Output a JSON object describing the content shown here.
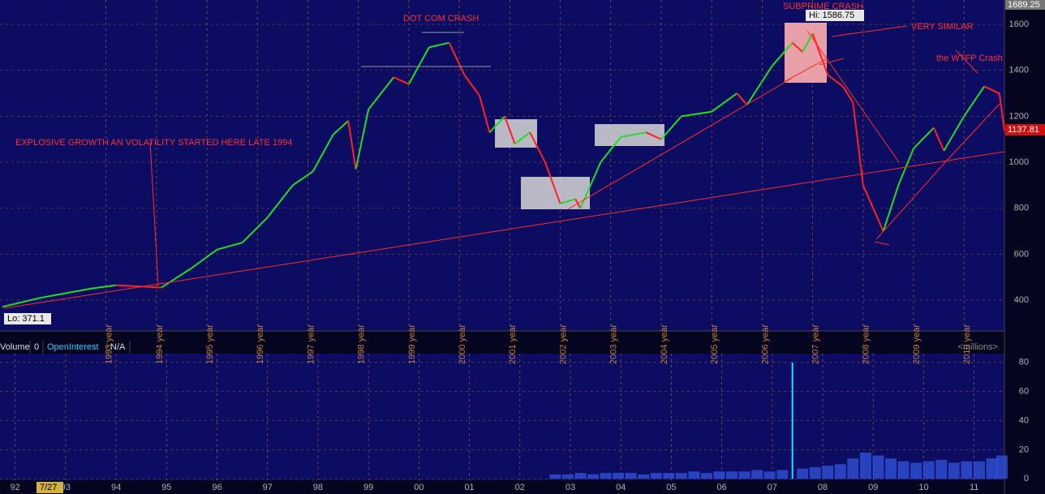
{
  "chart_data": [
    {
      "type": "line",
      "x": [
        1991.75,
        1992.5,
        1993,
        1993.5,
        1994,
        1994.9,
        1995.5,
        1996,
        1996.5,
        1997,
        1997.5,
        1997.9,
        1998.3,
        1998.6,
        1998.75,
        1999,
        1999.5,
        1999.8,
        2000.2,
        2000.6,
        2000.9,
        2001.2,
        2001.4,
        2001.7,
        2001.9,
        2002.2,
        2002.5,
        2002.8,
        2003.1,
        2003.2,
        2003.6,
        2004,
        2004.5,
        2004.8,
        2005.2,
        2005.8,
        2006.3,
        2006.5,
        2007,
        2007.4,
        2007.6,
        2007.8,
        2008.1,
        2008.4,
        2008.6,
        2008.8,
        2009.2,
        2009.5,
        2009.8,
        2010.2,
        2010.4,
        2010.8,
        2011.2,
        2011.5,
        2011.6
      ],
      "values": [
        371,
        410,
        430,
        450,
        465,
        455,
        540,
        620,
        650,
        760,
        900,
        960,
        1120,
        1180,
        970,
        1230,
        1370,
        1340,
        1500,
        1520,
        1380,
        1290,
        1130,
        1200,
        1080,
        1130,
        1000,
        820,
        840,
        800,
        1000,
        1110,
        1130,
        1100,
        1200,
        1220,
        1300,
        1250,
        1420,
        1520,
        1480,
        1560,
        1380,
        1330,
        1260,
        900,
        700,
        900,
        1060,
        1150,
        1050,
        1200,
        1330,
        1300,
        1137.81
      ],
      "up_color": "#22dd22",
      "down_color": "#ff2020",
      "xlim": [
        1991.7,
        2011.6
      ],
      "xticks": [
        {
          "value": 1993.8,
          "label": "1993 year"
        },
        {
          "value": 1994.8,
          "label": "1994 year"
        },
        {
          "value": 1995.8,
          "label": "1995 year"
        },
        {
          "value": 1996.8,
          "label": "1996 year"
        },
        {
          "value": 1997.8,
          "label": "1997 year"
        },
        {
          "value": 1998.8,
          "label": "1998 year"
        },
        {
          "value": 1999.8,
          "label": "1999 year"
        },
        {
          "value": 2000.8,
          "label": "2000 year"
        },
        {
          "value": 2001.8,
          "label": "2001 year"
        },
        {
          "value": 2002.8,
          "label": "2002 year"
        },
        {
          "value": 2003.8,
          "label": "2003 year"
        },
        {
          "value": 2004.8,
          "label": "2004 year"
        },
        {
          "value": 2005.8,
          "label": "2005 year"
        },
        {
          "value": 2006.8,
          "label": "2006 year"
        },
        {
          "value": 2007.8,
          "label": "2007 year"
        },
        {
          "value": 2008.8,
          "label": "2008 year"
        },
        {
          "value": 2009.8,
          "label": "2009 year"
        },
        {
          "value": 2010.8,
          "label": "2010 year"
        }
      ],
      "ylim": [
        266,
        1706
      ],
      "yticks": [
        400,
        600,
        800,
        1000,
        1200,
        1400,
        1600
      ],
      "grid": true,
      "top_price": 1689.25,
      "last_price": 1137.81,
      "annotations": [
        "DOT COM CRASH",
        "SUBPRIME CRASH",
        "Hi: 1586.75",
        "VERY SIMILAR",
        "the WTFP Crash",
        "EXPLOSIVE GROWTH AN VOLATILITY STARTED HERE LATE 1994",
        "Lo: 371.1"
      ]
    },
    {
      "type": "bar",
      "title": "Volume",
      "volume_value": "0",
      "oi_label": "OpenInterest",
      "oi_value": "N/A",
      "unit": "<millions>",
      "date_label": "7/27",
      "x": [
        2002.7,
        2002.95,
        2003.2,
        2003.45,
        2003.7,
        2003.95,
        2004.2,
        2004.45,
        2004.7,
        2004.95,
        2005.2,
        2005.45,
        2005.7,
        2005.95,
        2006.2,
        2006.45,
        2006.7,
        2006.95,
        2007.2,
        2007.4,
        2007.6,
        2007.85,
        2008.1,
        2008.35,
        2008.6,
        2008.85,
        2009.1,
        2009.35,
        2009.6,
        2009.85,
        2010.1,
        2010.35,
        2010.6,
        2010.85,
        2011.1,
        2011.35,
        2011.55
      ],
      "values": [
        3,
        3,
        4,
        3,
        4,
        4,
        4,
        3,
        4,
        4,
        4,
        5,
        4,
        5,
        5,
        5,
        6,
        5,
        6,
        80,
        7,
        8,
        9,
        10,
        14,
        18,
        16,
        14,
        12,
        11,
        12,
        13,
        11,
        12,
        12,
        14,
        16
      ],
      "color": "#3355dd",
      "spike_color": "#22ddff",
      "xlim": [
        1991.7,
        2011.6
      ],
      "xticks": [
        {
          "value": 1992,
          "label": "92"
        },
        {
          "value": 1993,
          "label": "93"
        },
        {
          "value": 1994,
          "label": "94"
        },
        {
          "value": 1995,
          "label": "95"
        },
        {
          "value": 1996,
          "label": "96"
        },
        {
          "value": 1997,
          "label": "97"
        },
        {
          "value": 1998,
          "label": "98"
        },
        {
          "value": 1999,
          "label": "99"
        },
        {
          "value": 2000,
          "label": "00"
        },
        {
          "value": 2001,
          "label": "01"
        },
        {
          "value": 2002,
          "label": "02"
        },
        {
          "value": 2003,
          "label": "03"
        },
        {
          "value": 2004,
          "label": "04"
        },
        {
          "value": 2005,
          "label": "05"
        },
        {
          "value": 2006,
          "label": "06"
        },
        {
          "value": 2007,
          "label": "07"
        },
        {
          "value": 2008,
          "label": "08"
        },
        {
          "value": 2009,
          "label": "09"
        },
        {
          "value": 2010,
          "label": "10"
        },
        {
          "value": 2011,
          "label": "11"
        }
      ],
      "ylim": [
        -1,
        86
      ],
      "yticks": [
        0,
        20,
        40,
        60,
        80
      ],
      "grid": true
    }
  ]
}
